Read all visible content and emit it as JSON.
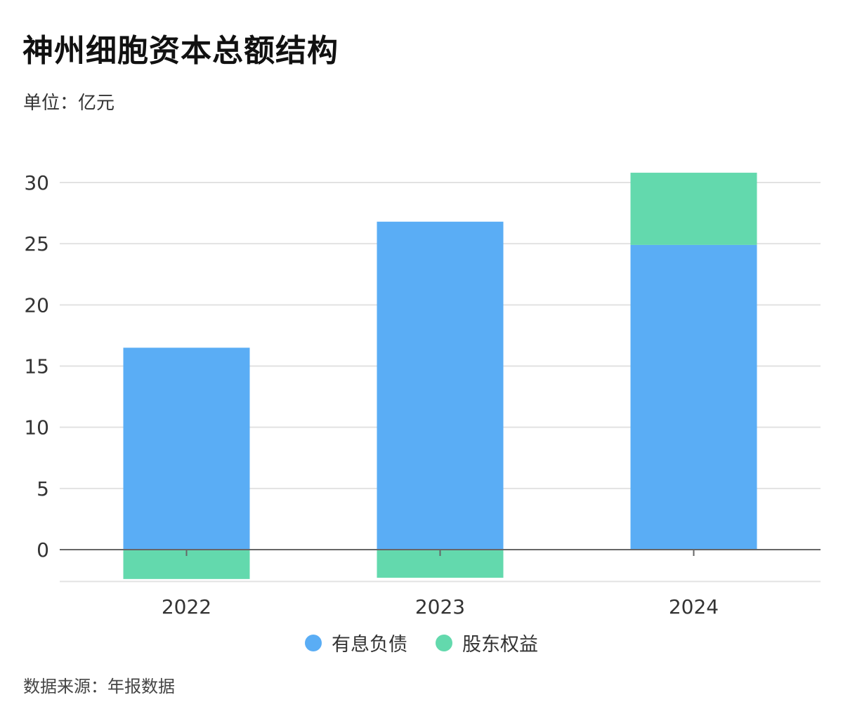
{
  "header": {
    "title": "神州细胞资本总额结构",
    "unit": "单位：亿元"
  },
  "footer": {
    "source": "数据来源：年报数据"
  },
  "colors": {
    "debt": "#5aadf5",
    "equity": "#63d9ad",
    "grid": "#e2e2e2",
    "zero_line": "#666666"
  },
  "chart_data": {
    "type": "bar",
    "stacked": true,
    "categories": [
      "2022",
      "2023",
      "2024"
    ],
    "series": [
      {
        "name": "有息负债",
        "color": "#5aadf5",
        "values": [
          16.5,
          26.8,
          24.9
        ]
      },
      {
        "name": "股东权益",
        "color": "#63d9ad",
        "values": [
          -2.4,
          -2.3,
          5.9
        ]
      }
    ],
    "y_ticks": [
      0,
      5,
      10,
      15,
      20,
      25,
      30
    ],
    "ylim": [
      -2.6,
      30
    ],
    "grid": true,
    "legend_position": "bottom-center",
    "xlabel": "",
    "ylabel": ""
  }
}
